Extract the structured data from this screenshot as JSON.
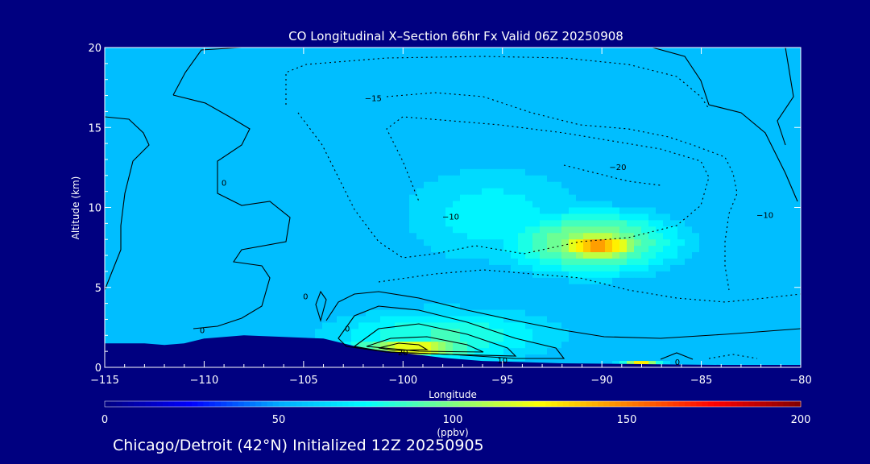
{
  "chart_data": {
    "type": "heatmap",
    "title": "CO Longitudinal X–Section 66hr  Fx Valid 06Z 20250908",
    "xlabel": "Longitude",
    "ylabel": "Altitude (km)",
    "xlim": [
      -115,
      -80
    ],
    "ylim": [
      0,
      20
    ],
    "x_ticks": [
      -115,
      -110,
      -105,
      -100,
      -95,
      -90,
      -85,
      -80
    ],
    "x_tick_labels": [
      "−115",
      "−110",
      "−105",
      "−100",
      "−95",
      "−90",
      "−85",
      "−80"
    ],
    "y_ticks": [
      0,
      5,
      10,
      15,
      20
    ],
    "y_tick_labels": [
      "0",
      "5",
      "10",
      "15",
      "20"
    ],
    "colorbar": {
      "min": 0,
      "max": 200,
      "ticks": [
        0,
        50,
        100,
        150,
        200
      ],
      "tick_labels": [
        "0",
        "50",
        "100",
        "150",
        "200"
      ],
      "unit": "(ppbv)",
      "colors": [
        "#000080",
        "#0000ff",
        "#00aaff",
        "#00ffff",
        "#80ff80",
        "#ffff00",
        "#ff8000",
        "#ff0000",
        "#800000"
      ]
    },
    "field": {
      "background_ppbv": 40,
      "layers": [
        {
          "ymin": 0,
          "ymax": 2,
          "ppbv": 55
        },
        {
          "ymin": 2,
          "ymax": 6,
          "ppbv": 45
        },
        {
          "ymin": 6,
          "ymax": 12,
          "ppbv": 40
        },
        {
          "ymin": 12,
          "ymax": 15.5,
          "ppbv": 45
        },
        {
          "ymin": 15.5,
          "ymax": 16.5,
          "ppbv": 30
        },
        {
          "ymin": 16.5,
          "ymax": 20,
          "ppbv": 40
        }
      ],
      "features": [
        {
          "label": "mid-troposphere plume",
          "x": -95.5,
          "y": 9.5,
          "sx": 4.5,
          "sy": 3.0,
          "ppbv": 72
        },
        {
          "label": "upper plume core",
          "x": -90.2,
          "y": 7.6,
          "sx": 1.6,
          "sy": 0.7,
          "ppbv": 150
        },
        {
          "label": "upper plume halo",
          "x": -90.5,
          "y": 7.8,
          "sx": 3.5,
          "sy": 1.6,
          "ppbv": 105
        },
        {
          "label": "boundary-layer plume core",
          "x": -99.5,
          "y": 1.2,
          "sx": 2.0,
          "sy": 0.4,
          "ppbv": 130
        },
        {
          "label": "boundary-layer plume",
          "x": -98,
          "y": 2.0,
          "sx": 4.5,
          "sy": 1.3,
          "ppbv": 85
        },
        {
          "label": "surface peak",
          "x": -88,
          "y": 0.1,
          "sx": 0.6,
          "sy": 0.2,
          "ppbv": 140
        }
      ]
    },
    "contour_labels": [
      {
        "text": "−15",
        "x": -101.5,
        "y": 16.8
      },
      {
        "text": "−20",
        "x": -89.2,
        "y": 12.5
      },
      {
        "text": "−10",
        "x": -97.6,
        "y": 9.4
      },
      {
        "text": "−10",
        "x": -81.8,
        "y": 9.5
      },
      {
        "text": "0",
        "x": -109.0,
        "y": 11.5
      },
      {
        "text": "0",
        "x": -104.9,
        "y": 4.4
      },
      {
        "text": "0",
        "x": -110.1,
        "y": 2.3
      },
      {
        "text": "0",
        "x": -102.8,
        "y": 2.4
      },
      {
        "text": "0",
        "x": -86.2,
        "y": 0.3
      },
      {
        "text": "20",
        "x": -100.0,
        "y": 0.9
      },
      {
        "text": "10",
        "x": -95.0,
        "y": 0.4
      }
    ],
    "grid": false,
    "legend": "bottom"
  },
  "footer": "Chicago/Detroit (42°N) Initialized 12Z 20250905"
}
